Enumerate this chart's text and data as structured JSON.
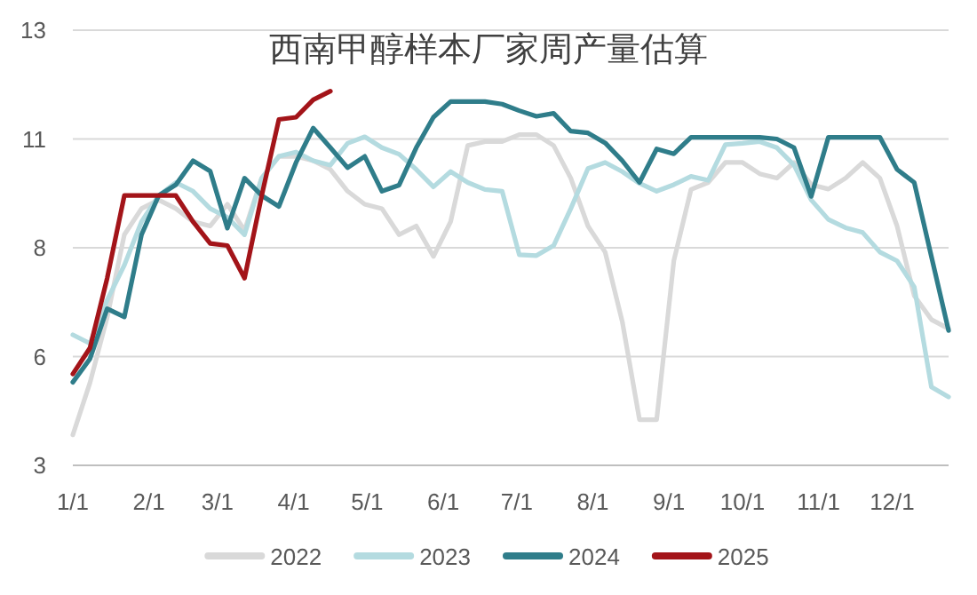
{
  "chart_data": {
    "type": "line",
    "title": "西南甲醇样本厂家周产量估算",
    "x": [
      "--01-01",
      "--01-08",
      "--01-15",
      "--01-22",
      "--01-29",
      "--02-05",
      "--02-12",
      "--02-19",
      "--02-26",
      "--03-05",
      "--03-12",
      "--03-19",
      "--03-26",
      "--04-02",
      "--04-09",
      "--04-16",
      "--04-23",
      "--04-30",
      "--05-07",
      "--05-14",
      "--05-21",
      "--05-28",
      "--06-04",
      "--06-11",
      "--06-18",
      "--06-25",
      "--07-02",
      "--07-09",
      "--07-16",
      "--07-23",
      "--07-30",
      "--08-06",
      "--08-13",
      "--08-20",
      "--08-27",
      "--09-03",
      "--09-10",
      "--09-17",
      "--09-24",
      "--10-01",
      "--10-08",
      "--10-15",
      "--10-22",
      "--10-29",
      "--11-05",
      "--11-12",
      "--11-19",
      "--11-26",
      "--12-03",
      "--12-10",
      "--12-17",
      "--12-24"
    ],
    "xlim": [
      "--01-01",
      "--12-24"
    ],
    "xticks": [
      {
        "value": "--01-01",
        "label": "1/1"
      },
      {
        "value": "--02-01",
        "label": "2/1"
      },
      {
        "value": "--03-01",
        "label": "3/1"
      },
      {
        "value": "--04-01",
        "label": "4/1"
      },
      {
        "value": "--05-01",
        "label": "5/1"
      },
      {
        "value": "--06-01",
        "label": "6/1"
      },
      {
        "value": "--07-01",
        "label": "7/1"
      },
      {
        "value": "--08-01",
        "label": "8/1"
      },
      {
        "value": "--09-01",
        "label": "9/1"
      },
      {
        "value": "--10-01",
        "label": "10/1"
      },
      {
        "value": "--11-01",
        "label": "11/1"
      },
      {
        "value": "--12-01",
        "label": "12/1"
      }
    ],
    "ylim": [
      3,
      13
    ],
    "yticks": [
      3,
      {
        "value": 5.5,
        "label": "6"
      },
      8,
      {
        "value": 10.5,
        "label": "11"
      },
      13
    ],
    "grid": "y",
    "legend": "bottom",
    "line_style": "solid",
    "series": [
      {
        "name": "2022",
        "color": "#d9d9d9",
        "values": [
          3.7,
          4.9,
          6.4,
          8.3,
          8.9,
          9.1,
          8.9,
          8.6,
          8.5,
          9.0,
          8.4,
          9.6,
          10.1,
          10.1,
          10.0,
          9.8,
          9.3,
          9.0,
          8.9,
          8.3,
          8.5,
          7.8,
          8.6,
          10.35,
          10.44,
          10.44,
          10.6,
          10.6,
          10.35,
          9.6,
          8.5,
          7.9,
          6.3,
          4.05,
          4.05,
          7.7,
          9.34,
          9.5,
          9.96,
          9.96,
          9.7,
          9.6,
          9.96,
          9.45,
          9.35,
          9.6,
          9.96,
          9.6,
          8.5,
          6.9,
          6.35,
          6.14
        ]
      },
      {
        "name": "2023",
        "color": "#b4dbe0",
        "values": [
          6.0,
          5.8,
          6.8,
          7.6,
          8.6,
          9.2,
          9.5,
          9.3,
          8.9,
          8.7,
          8.3,
          9.6,
          10.1,
          10.2,
          10.0,
          9.9,
          10.4,
          10.55,
          10.3,
          10.15,
          9.8,
          9.4,
          9.75,
          9.5,
          9.34,
          9.3,
          7.84,
          7.82,
          8.05,
          8.9,
          9.82,
          9.96,
          9.75,
          9.48,
          9.3,
          9.45,
          9.64,
          9.55,
          10.37,
          10.4,
          10.44,
          10.3,
          9.9,
          9.1,
          8.65,
          8.46,
          8.35,
          7.9,
          7.7,
          7.1,
          4.8,
          4.57
        ]
      },
      {
        "name": "2024",
        "color": "#2f7d8a",
        "values": [
          4.91,
          5.45,
          6.6,
          6.41,
          8.3,
          9.2,
          9.45,
          10.0,
          9.76,
          8.45,
          9.6,
          9.2,
          8.95,
          9.96,
          10.75,
          10.3,
          9.84,
          10.1,
          9.3,
          9.44,
          10.3,
          11.0,
          11.36,
          11.36,
          11.36,
          11.3,
          11.15,
          11.02,
          11.09,
          10.68,
          10.64,
          10.41,
          10.0,
          9.5,
          10.27,
          10.16,
          10.54,
          10.54,
          10.54,
          10.54,
          10.54,
          10.5,
          10.3,
          9.18,
          10.54,
          10.54,
          10.54,
          10.54,
          9.8,
          9.5,
          7.8,
          6.1
        ]
      },
      {
        "name": "2025",
        "color": "#a31419",
        "x": [
          "--01-01",
          "--01-08",
          "--01-15",
          "--01-22",
          "--01-29",
          "--02-05",
          "--02-12",
          "--02-19",
          "--02-26",
          "--03-05",
          "--03-12",
          "--03-19",
          "--03-26",
          "--04-02",
          "--04-09",
          "--04-16"
        ],
        "values": [
          5.1,
          5.7,
          7.3,
          9.2,
          9.2,
          9.2,
          9.2,
          8.6,
          8.1,
          8.05,
          7.3,
          9.2,
          10.95,
          11.0,
          11.4,
          11.6
        ]
      }
    ]
  }
}
